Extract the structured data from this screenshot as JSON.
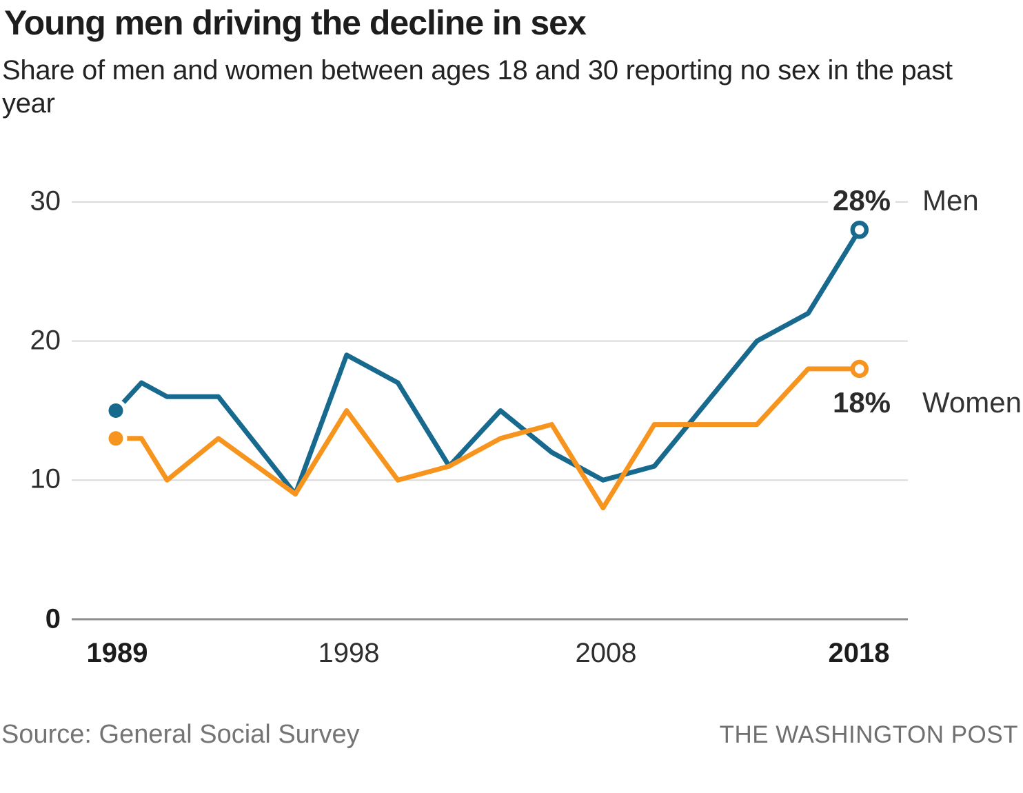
{
  "title": "Young men driving the decline in sex",
  "subtitle": "Share of men and women between ages 18 and 30 reporting no sex in the past year",
  "footer": {
    "source": "Source: General Social Survey",
    "credit": "THE WASHINGTON POST"
  },
  "chart_data": {
    "type": "line",
    "x": [
      1989,
      1990,
      1991,
      1993,
      1996,
      1998,
      2000,
      2002,
      2004,
      2006,
      2008,
      2010,
      2014,
      2016,
      2018
    ],
    "series": [
      {
        "name": "Men",
        "color": "#17698e",
        "end_label": "28%",
        "values": [
          15,
          17,
          16,
          16,
          9,
          19,
          17,
          11,
          15,
          12,
          10,
          11,
          20,
          22,
          28
        ]
      },
      {
        "name": "Women",
        "color": "#f7941e",
        "end_label": "18%",
        "values": [
          13,
          13,
          10,
          13,
          9,
          15,
          10,
          11,
          13,
          14,
          8,
          14,
          14,
          18,
          18
        ]
      }
    ],
    "xticks": [
      "1989",
      "1998",
      "2008",
      "2018"
    ],
    "yticks": [
      "0",
      "10",
      "20",
      "30"
    ],
    "ylim": [
      0,
      30
    ],
    "xlabel": "",
    "ylabel": "",
    "grid": "horizontal",
    "legend_position": "right-end-labels",
    "colors": {
      "gridline": "#d9d9d9",
      "axis": "#8c8c8c",
      "men": "#17698e",
      "women": "#f7941e"
    }
  }
}
